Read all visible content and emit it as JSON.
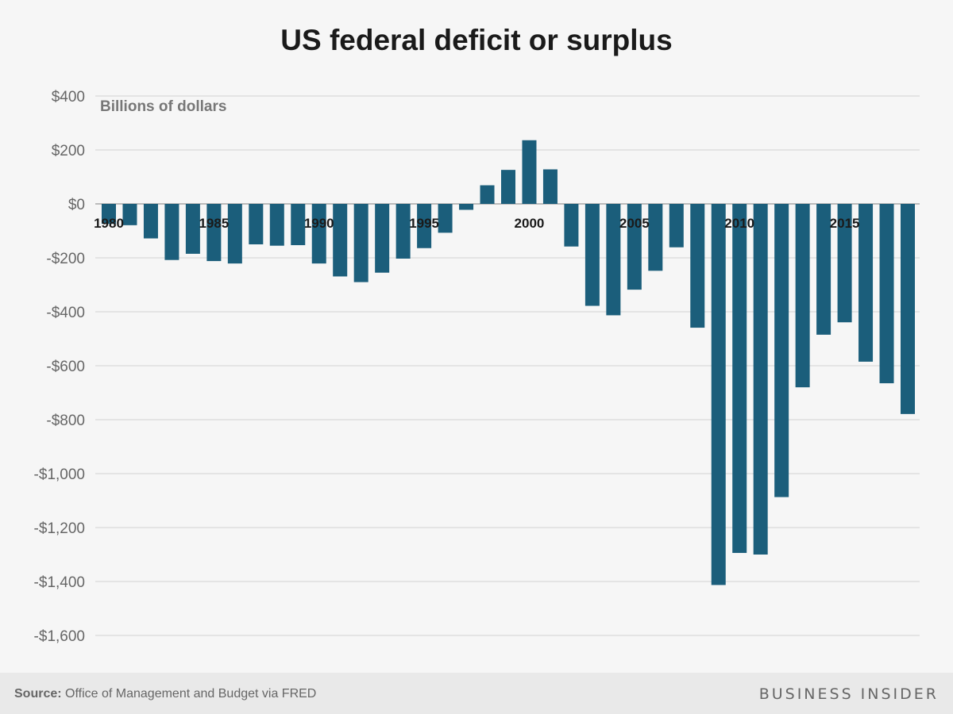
{
  "title": "US federal deficit or surplus",
  "footer": {
    "source_label": "Source:",
    "source_text": "Office of Management and Budget via FRED",
    "brand": "BUSINESS INSIDER"
  },
  "colors": {
    "bar": "#1b5e7b",
    "grid": "#dddddd",
    "zero_line": "#bbbbbb"
  },
  "chart_data": {
    "type": "bar",
    "title": "US federal deficit or surplus",
    "ylabel": "Billions of dollars",
    "xlabel": "",
    "ylim": [
      -1600,
      400
    ],
    "grid": true,
    "yticks": [
      400,
      200,
      0,
      -200,
      -400,
      -600,
      -800,
      -1000,
      -1200,
      -1400,
      -1600
    ],
    "ytick_labels": [
      "$400",
      "$200",
      "$0",
      "-$200",
      "-$400",
      "-$600",
      "-$800",
      "-$1,000",
      "-$1,200",
      "-$1,400",
      "-$1,600"
    ],
    "xtick_labels": [
      "1980",
      "1985",
      "1990",
      "1995",
      "2000",
      "2005",
      "2010",
      "2015"
    ],
    "categories": [
      1980,
      1981,
      1982,
      1983,
      1984,
      1985,
      1986,
      1987,
      1988,
      1989,
      1990,
      1991,
      1992,
      1993,
      1994,
      1995,
      1996,
      1997,
      1998,
      1999,
      2000,
      2001,
      2002,
      2003,
      2004,
      2005,
      2006,
      2007,
      2008,
      2009,
      2010,
      2011,
      2012,
      2013,
      2014,
      2015,
      2016,
      2017,
      2018
    ],
    "values": [
      -74,
      -79,
      -128,
      -208,
      -185,
      -212,
      -221,
      -150,
      -155,
      -153,
      -221,
      -269,
      -290,
      -255,
      -203,
      -164,
      -107,
      -22,
      69,
      126,
      236,
      128,
      -158,
      -378,
      -413,
      -318,
      -248,
      -161,
      -459,
      -1413,
      -1294,
      -1300,
      -1087,
      -680,
      -485,
      -439,
      -585,
      -665,
      -779
    ]
  }
}
